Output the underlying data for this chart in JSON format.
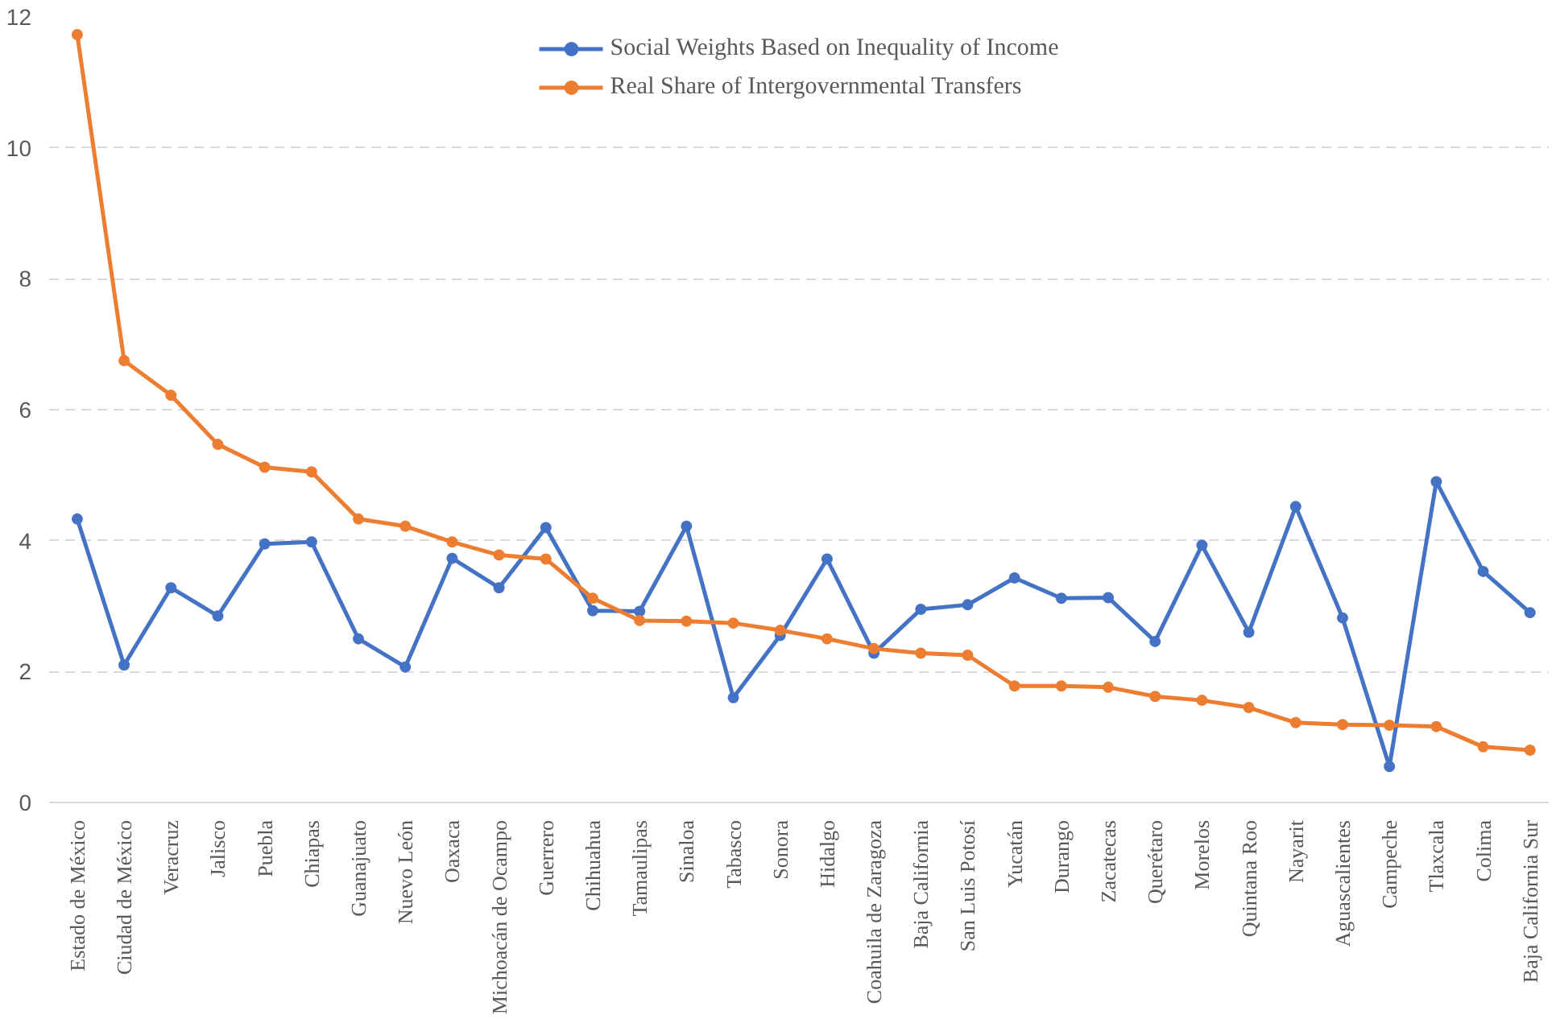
{
  "chart_data": {
    "type": "line",
    "categories": [
      "Estado de México",
      "Ciudad de México",
      "Veracruz",
      "Jalisco",
      "Puebla",
      "Chiapas",
      "Guanajuato",
      "Nuevo León",
      "Oaxaca",
      "Michoacán de Ocampo",
      "Guerrero",
      "Chihuahua",
      "Tamaulipas",
      "Sinaloa",
      "Tabasco",
      "Sonora",
      "Hidalgo",
      "Coahuila de Zaragoza",
      "Baja California",
      "San Luis Potosí",
      "Yucatán",
      "Durango",
      "Zacatecas",
      "Querétaro",
      "Morelos",
      "Quintana Roo",
      "Nayarit",
      "Aguascalientes",
      "Campeche",
      "Tlaxcala",
      "Colima",
      "Baja California Sur"
    ],
    "series": [
      {
        "name": "Social Weights Based on Inequality of Income",
        "color": "#4472c4",
        "values": [
          4.33,
          2.1,
          3.28,
          2.85,
          3.95,
          3.98,
          2.5,
          2.07,
          3.73,
          3.28,
          4.2,
          2.93,
          2.92,
          4.22,
          1.6,
          2.55,
          3.72,
          2.28,
          2.95,
          3.02,
          3.43,
          3.12,
          3.13,
          2.46,
          3.93,
          2.6,
          4.52,
          2.82,
          0.55,
          4.9,
          3.53,
          2.9
        ]
      },
      {
        "name": "Real Share of Intergovernmental Transfers",
        "color": "#ed7d31",
        "values": [
          11.73,
          6.75,
          6.22,
          5.47,
          5.12,
          5.05,
          4.33,
          4.22,
          3.98,
          3.78,
          3.72,
          3.12,
          2.78,
          2.77,
          2.74,
          2.63,
          2.5,
          2.35,
          2.28,
          2.25,
          1.78,
          1.78,
          1.76,
          1.62,
          1.56,
          1.45,
          1.22,
          1.19,
          1.18,
          1.16,
          0.85,
          0.8
        ]
      }
    ],
    "ylim": [
      0,
      12
    ],
    "yticks": [
      0,
      2,
      4,
      6,
      8,
      10,
      12
    ],
    "grid": "y",
    "legend": "top",
    "marker": "circle",
    "line_style": "solid"
  }
}
